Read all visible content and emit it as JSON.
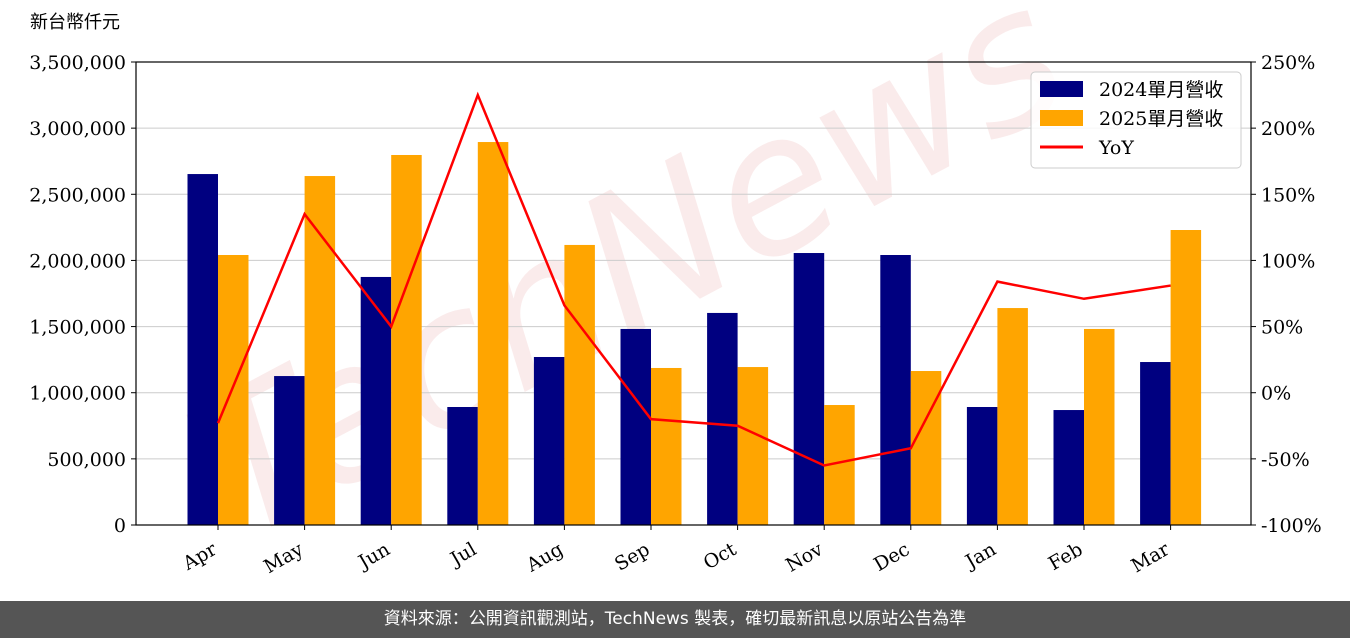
{
  "chart_data": {
    "type": "bar",
    "y_label": "新台幣仟元",
    "watermark": "TechNews",
    "categories": [
      "Apr",
      "May",
      "Jun",
      "Jul",
      "Aug",
      "Sep",
      "Oct",
      "Nov",
      "Dec",
      "Jan",
      "Feb",
      "Mar"
    ],
    "series": [
      {
        "name": "2024單月營收",
        "type": "bar",
        "color": "#000080",
        "values": [
          2653000,
          1126000,
          1875000,
          892000,
          1270000,
          1482000,
          1603000,
          2056000,
          2041000,
          892000,
          869000,
          1232000
        ]
      },
      {
        "name": "2025單月營收",
        "type": "bar",
        "color": "#ffa500",
        "values": [
          2041000,
          2638000,
          2797000,
          2895000,
          2117000,
          1187000,
          1194000,
          907000,
          1164000,
          1640000,
          1482000,
          2230000
        ]
      },
      {
        "name": "YoY",
        "type": "line",
        "axis": "y2",
        "color": "#ff0000",
        "values": [
          -23,
          135,
          50,
          225,
          66,
          -20,
          -25,
          -55,
          -42,
          84,
          71,
          81
        ]
      }
    ],
    "ylim": [
      0,
      3500000
    ],
    "yticks": [
      0,
      {
        "value": 500000,
        "label": "500,000"
      },
      {
        "value": 1000000,
        "label": "1,000,000"
      },
      {
        "value": 1500000,
        "label": "1,500,000"
      },
      {
        "value": 2000000,
        "label": "2,000,000"
      },
      {
        "value": 2500000,
        "label": "2,500,000"
      },
      {
        "value": 3000000,
        "label": "3,000,000"
      },
      {
        "value": 3500000,
        "label": "3,500,000"
      }
    ],
    "y2lim": [
      -100,
      250
    ],
    "y2ticks": [
      {
        "value": -100,
        "label": "-100%"
      },
      {
        "value": -50,
        "label": "-50%"
      },
      {
        "value": 0,
        "label": "0%"
      },
      {
        "value": 50,
        "label": "50%"
      },
      {
        "value": 100,
        "label": "100%"
      },
      {
        "value": 150,
        "label": "150%"
      },
      {
        "value": 200,
        "label": "200%"
      },
      {
        "value": 250,
        "label": "250%"
      }
    ],
    "grid": true,
    "legend": "upper right"
  },
  "footer": "資料來源：公開資訊觀測站，TechNews 製表，確切最新訊息以原站公告為準"
}
